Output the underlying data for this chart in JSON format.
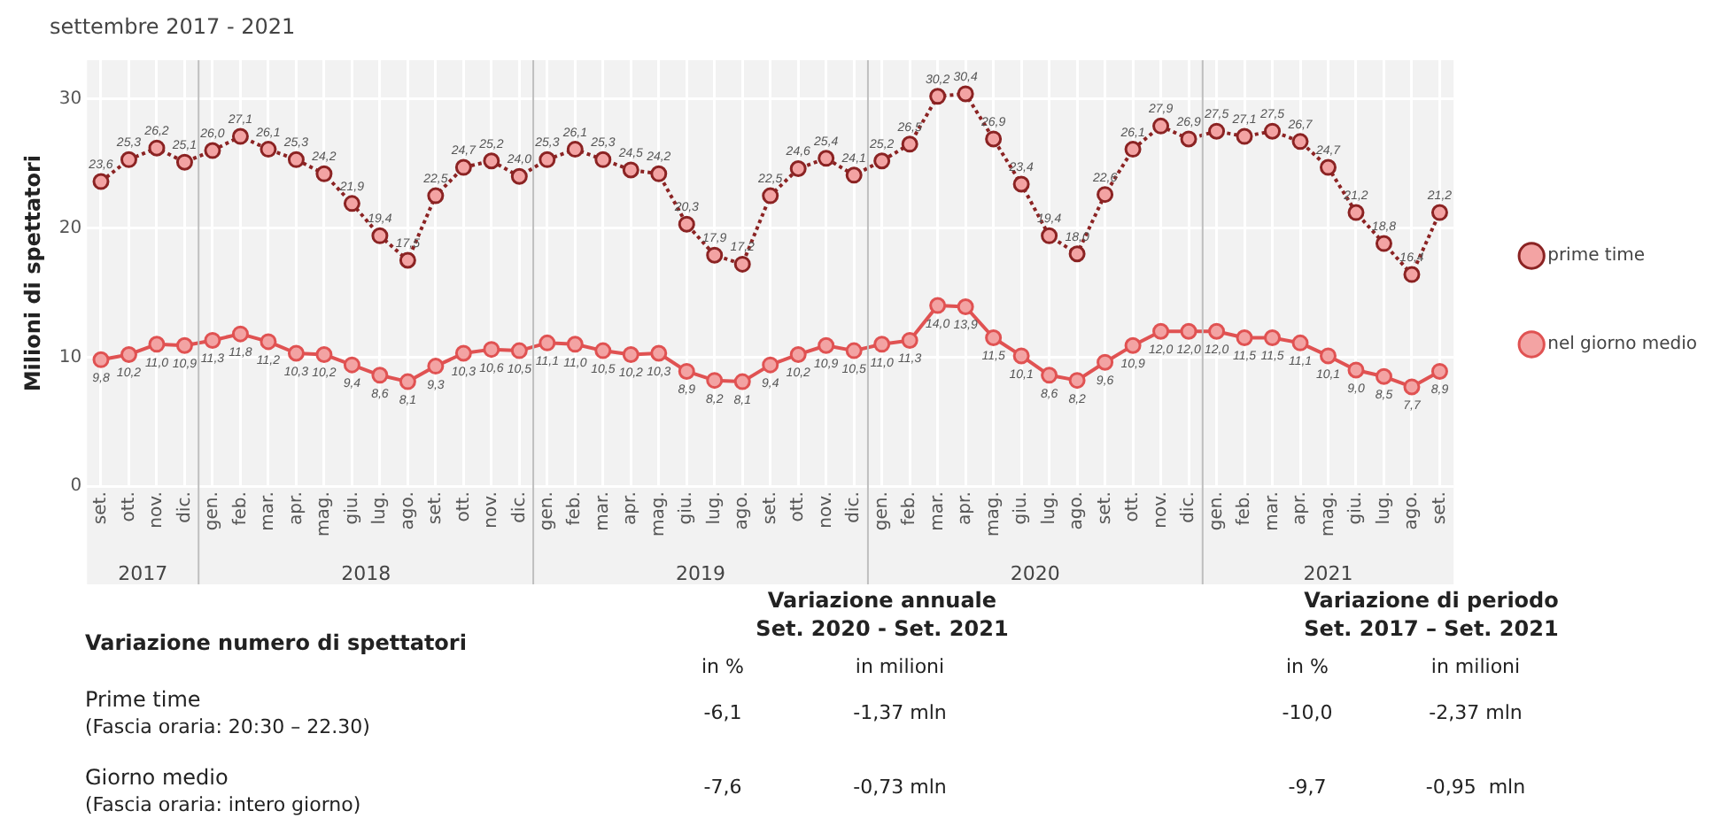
{
  "chart_data": {
    "type": "line",
    "title": "settembre 2017 - 2021",
    "ylabel": "Milioni di spettatori",
    "x": [
      "2017-09",
      "2017-10",
      "2017-11",
      "2017-12",
      "2018-01",
      "2018-02",
      "2018-03",
      "2018-04",
      "2018-05",
      "2018-06",
      "2018-07",
      "2018-08",
      "2018-09",
      "2018-10",
      "2018-11",
      "2018-12",
      "2019-01",
      "2019-02",
      "2019-03",
      "2019-04",
      "2019-05",
      "2019-06",
      "2019-07",
      "2019-08",
      "2019-09",
      "2019-10",
      "2019-11",
      "2019-12",
      "2020-01",
      "2020-02",
      "2020-03",
      "2020-04",
      "2020-05",
      "2020-06",
      "2020-07",
      "2020-08",
      "2020-09",
      "2020-10",
      "2020-11",
      "2020-12",
      "2021-01",
      "2021-02",
      "2021-03",
      "2021-04",
      "2021-05",
      "2021-06",
      "2021-07",
      "2021-08",
      "2021-09"
    ],
    "xlim": [
      "2017-08-16",
      "2021-09-16"
    ],
    "xticks": [
      {
        "value": "2017-09",
        "label": "set."
      },
      {
        "value": "2017-10",
        "label": "ott."
      },
      {
        "value": "2017-11",
        "label": "nov."
      },
      {
        "value": "2017-12",
        "label": "dic."
      },
      {
        "value": "2018-01",
        "label": "gen."
      },
      {
        "value": "2018-02",
        "label": "feb."
      },
      {
        "value": "2018-03",
        "label": "mar."
      },
      {
        "value": "2018-04",
        "label": "apr."
      },
      {
        "value": "2018-05",
        "label": "mag."
      },
      {
        "value": "2018-06",
        "label": "giu."
      },
      {
        "value": "2018-07",
        "label": "lug."
      },
      {
        "value": "2018-08",
        "label": "ago."
      },
      {
        "value": "2018-09",
        "label": "set."
      },
      {
        "value": "2018-10",
        "label": "ott."
      },
      {
        "value": "2018-11",
        "label": "nov."
      },
      {
        "value": "2018-12",
        "label": "dic."
      },
      {
        "value": "2019-01",
        "label": "gen."
      },
      {
        "value": "2019-02",
        "label": "feb."
      },
      {
        "value": "2019-03",
        "label": "mar."
      },
      {
        "value": "2019-04",
        "label": "apr."
      },
      {
        "value": "2019-05",
        "label": "mag."
      },
      {
        "value": "2019-06",
        "label": "giu."
      },
      {
        "value": "2019-07",
        "label": "lug."
      },
      {
        "value": "2019-08",
        "label": "ago."
      },
      {
        "value": "2019-09",
        "label": "set."
      },
      {
        "value": "2019-10",
        "label": "ott."
      },
      {
        "value": "2019-11",
        "label": "nov."
      },
      {
        "value": "2019-12",
        "label": "dic."
      },
      {
        "value": "2020-01",
        "label": "gen."
      },
      {
        "value": "2020-02",
        "label": "feb."
      },
      {
        "value": "2020-03",
        "label": "mar."
      },
      {
        "value": "2020-04",
        "label": "apr."
      },
      {
        "value": "2020-05",
        "label": "mag."
      },
      {
        "value": "2020-06",
        "label": "giu."
      },
      {
        "value": "2020-07",
        "label": "lug."
      },
      {
        "value": "2020-08",
        "label": "ago."
      },
      {
        "value": "2020-09",
        "label": "set."
      },
      {
        "value": "2020-10",
        "label": "ott."
      },
      {
        "value": "2020-11",
        "label": "nov."
      },
      {
        "value": "2020-12",
        "label": "dic."
      },
      {
        "value": "2021-01",
        "label": "gen."
      },
      {
        "value": "2021-02",
        "label": "feb."
      },
      {
        "value": "2021-03",
        "label": "mar."
      },
      {
        "value": "2021-04",
        "label": "apr."
      },
      {
        "value": "2021-05",
        "label": "mag."
      },
      {
        "value": "2021-06",
        "label": "giu."
      },
      {
        "value": "2021-07",
        "label": "lug."
      },
      {
        "value": "2021-08",
        "label": "ago."
      },
      {
        "value": "2021-09",
        "label": "set."
      }
    ],
    "ylim": [
      0,
      33
    ],
    "yticks": [
      0,
      10,
      20,
      30
    ],
    "grid": true,
    "legend": "right",
    "marker": "circle",
    "series": [
      {
        "name": "prime time",
        "color": "#8b2323",
        "line_style": "dotted",
        "values": [
          23.6,
          25.3,
          26.2,
          25.1,
          26.0,
          27.1,
          26.1,
          25.3,
          24.2,
          21.9,
          19.4,
          17.5,
          22.5,
          24.7,
          25.2,
          24.0,
          25.3,
          26.1,
          25.3,
          24.5,
          24.2,
          20.3,
          17.9,
          17.2,
          22.5,
          24.6,
          25.4,
          24.1,
          25.2,
          26.5,
          30.2,
          30.4,
          26.9,
          23.4,
          19.4,
          18.0,
          22.6,
          26.1,
          27.9,
          26.9,
          27.5,
          27.1,
          27.5,
          26.7,
          24.7,
          21.2,
          18.8,
          16.4,
          21.2
        ],
        "value_labels": [
          "23,6",
          "25,3",
          "26,2",
          "25,1",
          "26,0",
          "27,1",
          "26,1",
          "25,3",
          "24,2",
          "21,9",
          "19,4",
          "17,5",
          "22,5",
          "24,7",
          "25,2",
          "24,0",
          "25,3",
          "26,1",
          "25,3",
          "24,5",
          "24,2",
          "20,3",
          "17,9",
          "17,2",
          "22,5",
          "24,6",
          "25,4",
          "24,1",
          "25,2",
          "26,5",
          "30,2",
          "30,4",
          "26,9",
          "23,4",
          "19,4",
          "18,0",
          "22,6",
          "26,1",
          "27,9",
          "26,9",
          "27,5",
          "27,1",
          "27,5",
          "26,7",
          "24,7",
          "21,2",
          "18,8",
          "16,4",
          "21,2"
        ]
      },
      {
        "name": "nel giorno medio",
        "color": "#e05252",
        "line_style": "solid",
        "values": [
          9.8,
          10.2,
          11.0,
          10.9,
          11.3,
          11.8,
          11.2,
          10.3,
          10.2,
          9.4,
          8.6,
          8.1,
          9.3,
          10.3,
          10.6,
          10.5,
          11.1,
          11.0,
          10.5,
          10.2,
          10.3,
          8.9,
          8.2,
          8.1,
          9.4,
          10.2,
          10.9,
          10.5,
          11.0,
          11.3,
          14.0,
          13.9,
          11.5,
          10.1,
          8.6,
          8.2,
          9.6,
          10.9,
          12.0,
          12.0,
          12.0,
          11.5,
          11.5,
          11.1,
          10.1,
          9.0,
          8.5,
          7.7,
          8.9
        ],
        "value_labels": [
          "9,8",
          "10,2",
          "11,0",
          "10,9",
          "11,3",
          "11,8",
          "11,2",
          "10,3",
          "10,2",
          "9,4",
          "8,6",
          "8,1",
          "9,3",
          "10,3",
          "10,6",
          "10,5",
          "11,1",
          "11,0",
          "10,5",
          "10,2",
          "10,3",
          "8,9",
          "8,2",
          "8,1",
          "9,4",
          "10,2",
          "10,9",
          "10,5",
          "11,0",
          "11,3",
          "14,0",
          "13,9",
          "11,5",
          "10,1",
          "8,6",
          "8,2",
          "9,6",
          "10,9",
          "12,0",
          "12,0",
          "12,0",
          "11,5",
          "11,5",
          "11,1",
          "10,1",
          "9,0",
          "8,5",
          "7,7",
          "8,9"
        ]
      }
    ],
    "ref_lines": [
      {
        "axis": "x",
        "value": "2017-12-16",
        "color": "#bfbfbf"
      },
      {
        "axis": "x",
        "value": "2018-12-16",
        "color": "#bfbfbf"
      },
      {
        "axis": "x",
        "value": "2019-12-16",
        "color": "#bfbfbf"
      },
      {
        "axis": "x",
        "value": "2020-12-16",
        "color": "#bfbfbf"
      }
    ],
    "annotations": [
      "2017",
      "2018",
      "2019",
      "2020",
      "2021",
      "Variazione numero di spettatori",
      "Variazione annuale",
      "Set. 2020 - Set. 2021",
      "Variazione di periodo",
      "Set. 2017 – Set. 2021",
      "in %",
      "in milioni",
      "in %",
      "in milioni",
      "Prime time",
      "(Fascia oraria: 20:30 – 22.30)",
      "-6,1",
      "-1,37 mln",
      "-10,0",
      "-2,37 mln",
      "Giorno medio",
      "(Fascia oraria: intero giorno)",
      "-7,6",
      "-0,73 mln",
      "-9,7",
      "-0,95  mln"
    ]
  }
}
